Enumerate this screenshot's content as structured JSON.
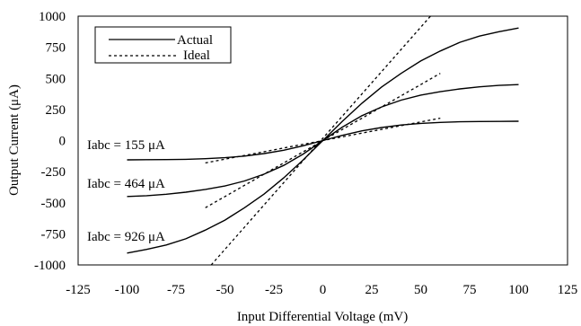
{
  "chart_data": {
    "type": "line",
    "title": "",
    "xlabel": "Input Differential Voltage (mV)",
    "ylabel": "Output Current (μA)",
    "xlim": [
      -125,
      125
    ],
    "ylim": [
      -1000,
      1000
    ],
    "xticks": [
      -125,
      -100,
      -75,
      -50,
      -25,
      0,
      25,
      50,
      75,
      100,
      125
    ],
    "yticks": [
      1000,
      750,
      500,
      250,
      0,
      -250,
      -500,
      -750,
      -1000
    ],
    "grid": false,
    "legend": {
      "position": "top-left",
      "entries": [
        {
          "label": "Actual",
          "style": "solid"
        },
        {
          "label": "Ideal",
          "style": "dashed"
        }
      ]
    },
    "annotations": [
      {
        "text": "Iabc = 155 μA"
      },
      {
        "text": "Iabc = 464 μA"
      },
      {
        "text": "Iabc = 926 μA"
      }
    ],
    "series": [
      {
        "group": "Actual",
        "style": "solid",
        "iabc": 155,
        "x": [
          -100,
          -90,
          -80,
          -70,
          -60,
          -50,
          -40,
          -30,
          -20,
          -10,
          0,
          10,
          20,
          30,
          40,
          50,
          60,
          70,
          80,
          90,
          100
        ],
        "y": [
          -155,
          -154,
          -153,
          -151,
          -146,
          -138,
          -125,
          -105,
          -78,
          -42,
          0,
          42,
          78,
          105,
          125,
          138,
          146,
          151,
          153,
          154,
          155
        ]
      },
      {
        "group": "Actual",
        "style": "solid",
        "iabc": 464,
        "x": [
          -100,
          -90,
          -80,
          -70,
          -60,
          -50,
          -40,
          -30,
          -20,
          -10,
          0,
          10,
          20,
          30,
          40,
          50,
          60,
          70,
          80,
          90,
          100
        ],
        "y": [
          -450,
          -443,
          -432,
          -415,
          -393,
          -365,
          -325,
          -270,
          -200,
          -108,
          0,
          108,
          200,
          270,
          325,
          365,
          393,
          415,
          432,
          443,
          450
        ]
      },
      {
        "group": "Actual",
        "style": "solid",
        "iabc": 926,
        "x": [
          -100,
          -90,
          -80,
          -70,
          -60,
          -50,
          -40,
          -30,
          -20,
          -10,
          0,
          10,
          20,
          30,
          40,
          50,
          60,
          70,
          80,
          90,
          100
        ],
        "y": [
          -905,
          -875,
          -840,
          -790,
          -720,
          -640,
          -540,
          -430,
          -300,
          -155,
          0,
          155,
          300,
          430,
          540,
          640,
          720,
          790,
          840,
          875,
          905
        ]
      },
      {
        "group": "Ideal",
        "style": "dashed",
        "iabc": 155,
        "x": [
          -60,
          60
        ],
        "y": [
          -180,
          180
        ]
      },
      {
        "group": "Ideal",
        "style": "dashed",
        "iabc": 464,
        "x": [
          -60,
          60
        ],
        "y": [
          -540,
          540
        ]
      },
      {
        "group": "Ideal",
        "style": "dashed",
        "iabc": 926,
        "x": [
          -57,
          55
        ],
        "y": [
          -1000,
          1000
        ]
      }
    ]
  }
}
